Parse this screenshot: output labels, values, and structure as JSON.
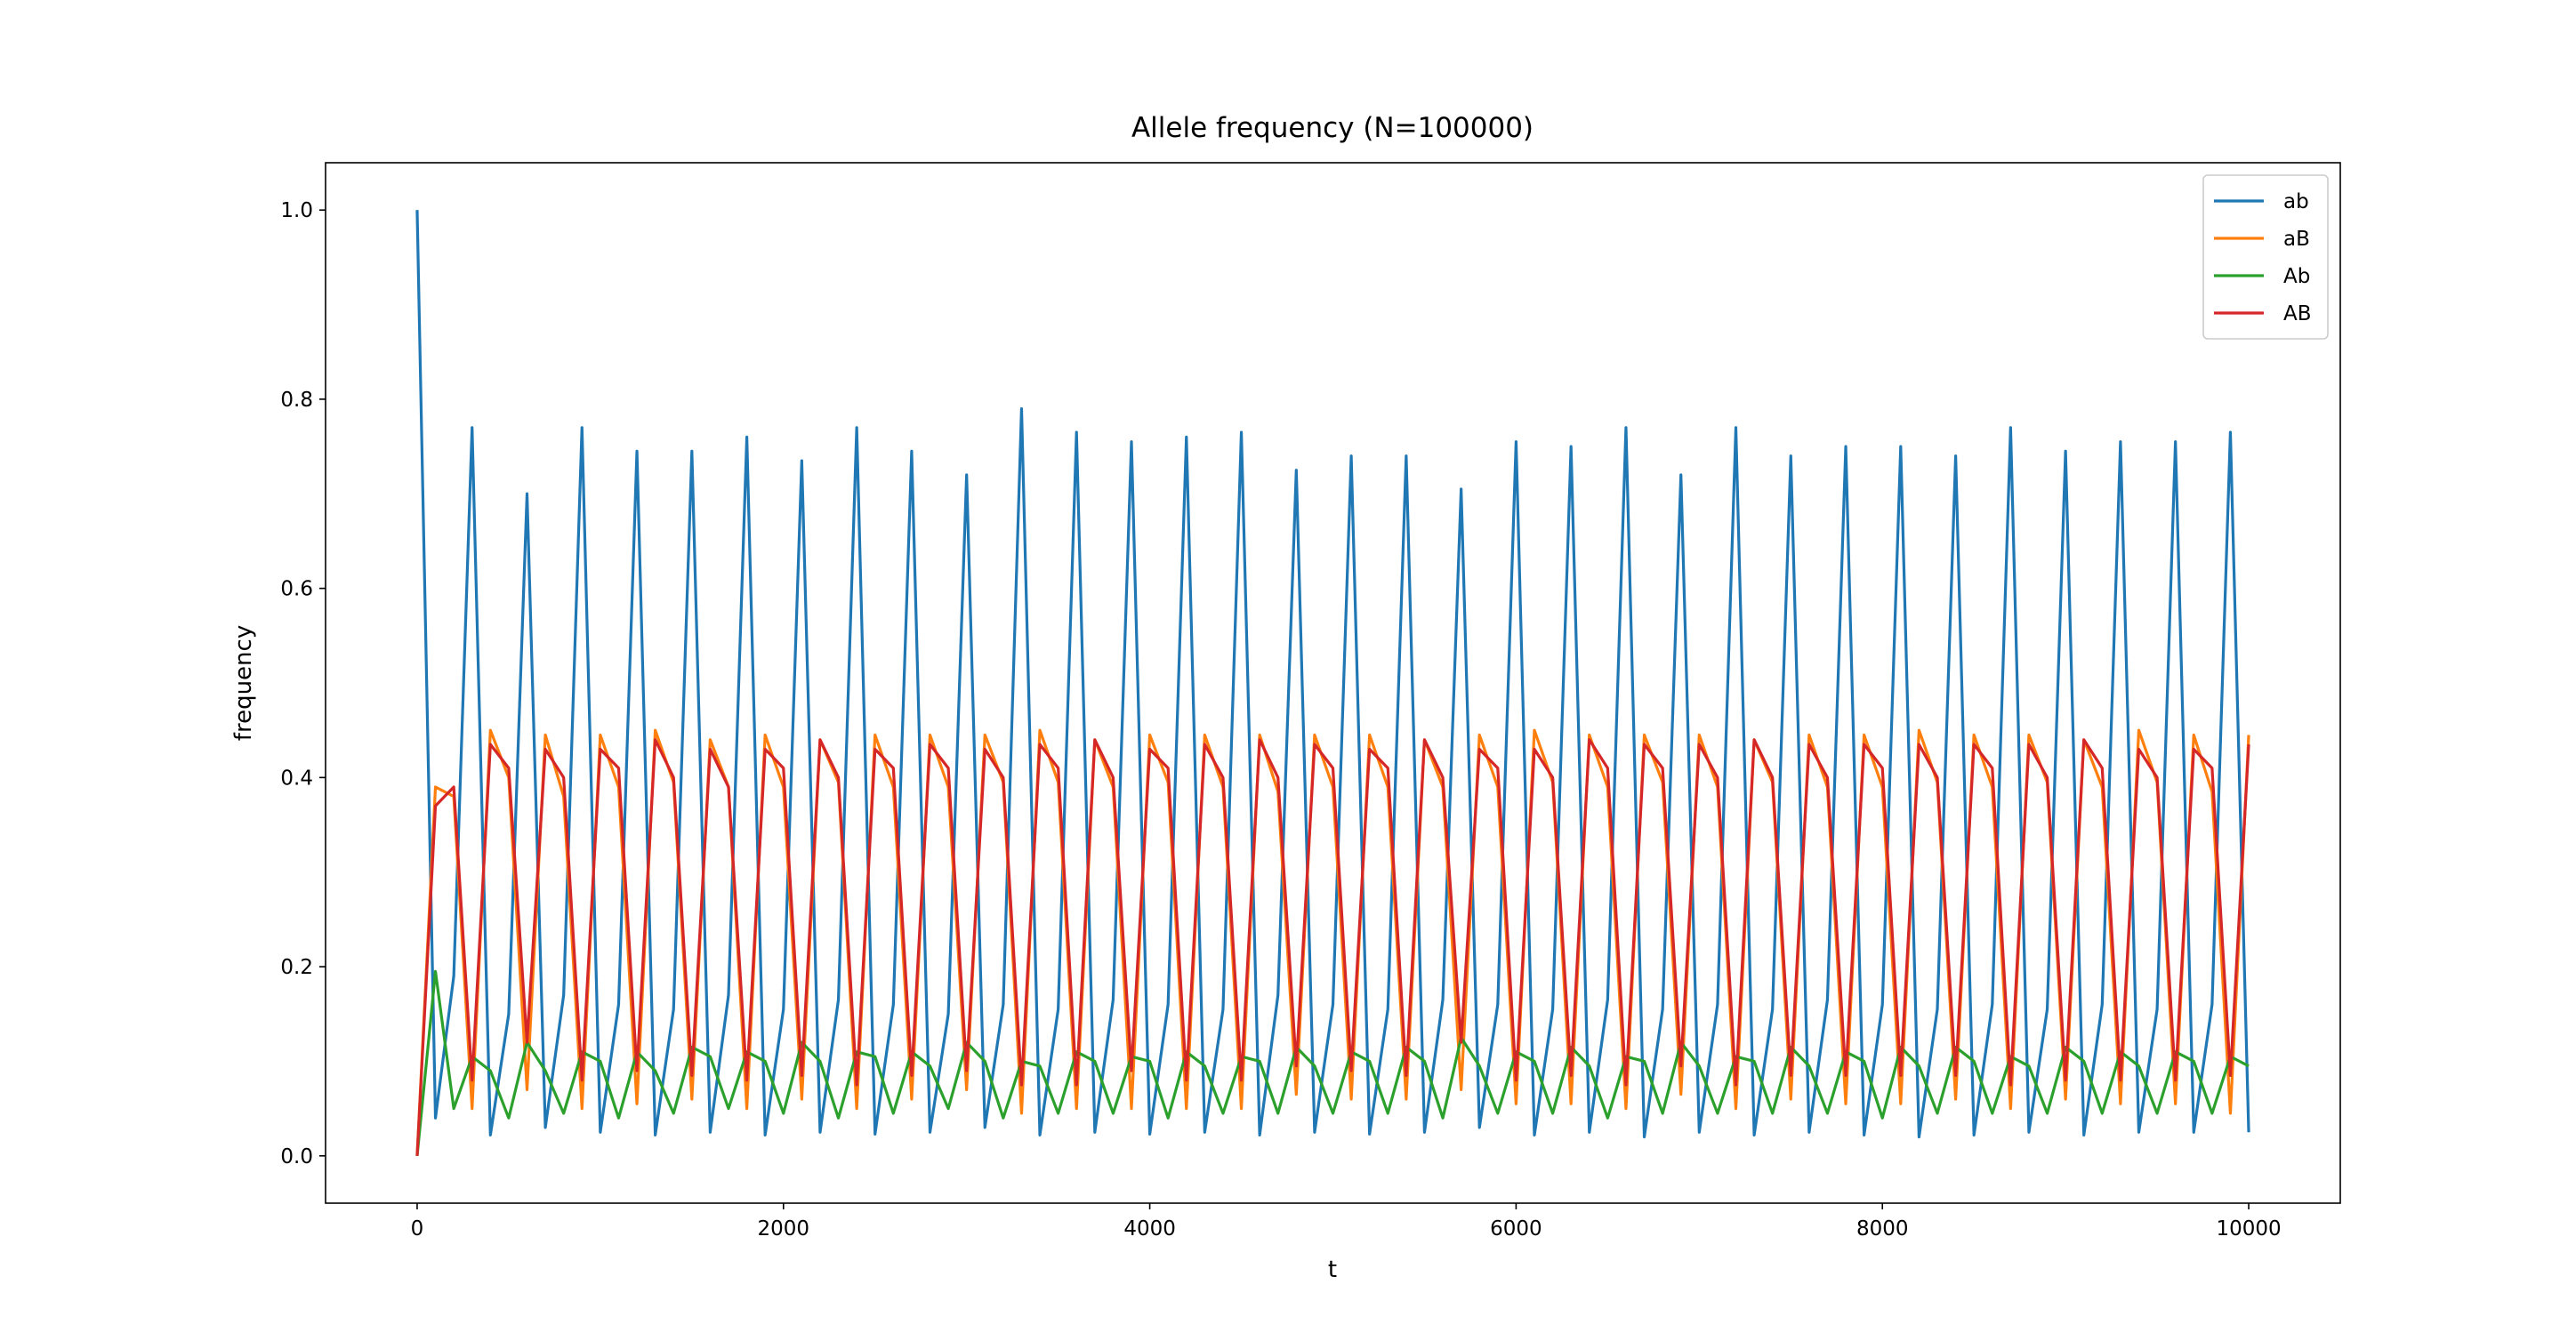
{
  "chart_data": {
    "type": "line",
    "title": "Allele frequency (N=100000)",
    "x_label": "t",
    "y_label": "frequency",
    "x": [
      0,
      100,
      200,
      300,
      400,
      500,
      600,
      700,
      800,
      900,
      1000,
      1100,
      1200,
      1300,
      1400,
      1500,
      1600,
      1700,
      1800,
      1900,
      2000,
      2100,
      2200,
      2300,
      2400,
      2500,
      2600,
      2700,
      2800,
      2900,
      3000,
      3100,
      3200,
      3300,
      3400,
      3500,
      3600,
      3700,
      3800,
      3900,
      4000,
      4100,
      4200,
      4300,
      4400,
      4500,
      4600,
      4700,
      4800,
      4900,
      5000,
      5100,
      5200,
      5300,
      5400,
      5500,
      5600,
      5700,
      5800,
      5900,
      6000,
      6100,
      6200,
      6300,
      6400,
      6500,
      6600,
      6700,
      6800,
      6900,
      7000,
      7100,
      7200,
      7300,
      7400,
      7500,
      7600,
      7700,
      7800,
      7900,
      8000,
      8100,
      8200,
      8300,
      8400,
      8500,
      8600,
      8700,
      8800,
      8900,
      9000,
      9100,
      9200,
      9300,
      9400,
      9500,
      9600,
      9700,
      9800,
      9900,
      10000
    ],
    "series": [
      {
        "name": "ab",
        "color": "#1f77b4",
        "values": [
          1.0,
          0.04,
          0.19,
          0.77,
          0.022,
          0.15,
          0.7,
          0.03,
          0.17,
          0.77,
          0.025,
          0.16,
          0.745,
          0.022,
          0.155,
          0.745,
          0.025,
          0.17,
          0.76,
          0.022,
          0.155,
          0.735,
          0.025,
          0.165,
          0.77,
          0.023,
          0.16,
          0.745,
          0.025,
          0.15,
          0.72,
          0.03,
          0.16,
          0.79,
          0.022,
          0.155,
          0.765,
          0.025,
          0.165,
          0.755,
          0.023,
          0.16,
          0.76,
          0.025,
          0.155,
          0.765,
          0.022,
          0.17,
          0.725,
          0.025,
          0.16,
          0.74,
          0.023,
          0.155,
          0.74,
          0.025,
          0.165,
          0.705,
          0.03,
          0.16,
          0.755,
          0.022,
          0.155,
          0.75,
          0.025,
          0.165,
          0.77,
          0.02,
          0.155,
          0.72,
          0.025,
          0.16,
          0.77,
          0.022,
          0.155,
          0.74,
          0.025,
          0.165,
          0.75,
          0.022,
          0.16,
          0.75,
          0.02,
          0.155,
          0.74,
          0.022,
          0.16,
          0.77,
          0.025,
          0.155,
          0.745,
          0.022,
          0.16,
          0.755,
          0.025,
          0.155,
          0.755,
          0.025,
          0.16,
          0.765,
          0.025
        ]
      },
      {
        "name": "aB",
        "color": "#ff7f0e",
        "values": [
          0,
          0.39,
          0.38,
          0.05,
          0.45,
          0.4,
          0.07,
          0.445,
          0.38,
          0.05,
          0.445,
          0.39,
          0.055,
          0.45,
          0.395,
          0.06,
          0.44,
          0.39,
          0.05,
          0.445,
          0.39,
          0.06,
          0.44,
          0.395,
          0.05,
          0.445,
          0.39,
          0.06,
          0.445,
          0.39,
          0.07,
          0.445,
          0.395,
          0.045,
          0.45,
          0.395,
          0.05,
          0.44,
          0.39,
          0.05,
          0.445,
          0.395,
          0.05,
          0.445,
          0.39,
          0.05,
          0.445,
          0.385,
          0.065,
          0.445,
          0.39,
          0.06,
          0.445,
          0.39,
          0.06,
          0.44,
          0.39,
          0.07,
          0.445,
          0.39,
          0.055,
          0.45,
          0.395,
          0.055,
          0.445,
          0.39,
          0.05,
          0.445,
          0.395,
          0.065,
          0.445,
          0.39,
          0.05,
          0.44,
          0.395,
          0.06,
          0.445,
          0.39,
          0.055,
          0.445,
          0.39,
          0.055,
          0.45,
          0.395,
          0.06,
          0.445,
          0.39,
          0.05,
          0.445,
          0.395,
          0.06,
          0.44,
          0.39,
          0.055,
          0.45,
          0.395,
          0.055,
          0.445,
          0.385,
          0.045,
          0.445
        ]
      },
      {
        "name": "Ab",
        "color": "#2ca02c",
        "values": [
          0,
          0.195,
          0.05,
          0.105,
          0.09,
          0.04,
          0.12,
          0.09,
          0.045,
          0.11,
          0.1,
          0.04,
          0.11,
          0.09,
          0.045,
          0.115,
          0.105,
          0.05,
          0.11,
          0.1,
          0.045,
          0.12,
          0.1,
          0.04,
          0.11,
          0.105,
          0.045,
          0.11,
          0.095,
          0.05,
          0.12,
          0.1,
          0.04,
          0.1,
          0.095,
          0.045,
          0.11,
          0.1,
          0.045,
          0.105,
          0.1,
          0.04,
          0.11,
          0.095,
          0.045,
          0.105,
          0.1,
          0.045,
          0.115,
          0.095,
          0.045,
          0.11,
          0.1,
          0.045,
          0.115,
          0.1,
          0.04,
          0.125,
          0.095,
          0.045,
          0.11,
          0.1,
          0.045,
          0.115,
          0.095,
          0.04,
          0.105,
          0.1,
          0.045,
          0.12,
          0.095,
          0.045,
          0.105,
          0.1,
          0.045,
          0.115,
          0.095,
          0.045,
          0.11,
          0.1,
          0.04,
          0.115,
          0.095,
          0.045,
          0.115,
          0.1,
          0.045,
          0.105,
          0.095,
          0.045,
          0.115,
          0.1,
          0.045,
          0.11,
          0.095,
          0.045,
          0.11,
          0.1,
          0.045,
          0.105,
          0.095
        ]
      },
      {
        "name": "AB",
        "color": "#d62728",
        "values": [
          0,
          0.37,
          0.39,
          0.08,
          0.435,
          0.41,
          0.12,
          0.43,
          0.4,
          0.08,
          0.43,
          0.41,
          0.09,
          0.44,
          0.4,
          0.085,
          0.43,
          0.39,
          0.08,
          0.43,
          0.41,
          0.085,
          0.44,
          0.4,
          0.075,
          0.43,
          0.41,
          0.085,
          0.435,
          0.41,
          0.09,
          0.43,
          0.4,
          0.075,
          0.435,
          0.41,
          0.075,
          0.44,
          0.4,
          0.09,
          0.43,
          0.41,
          0.08,
          0.435,
          0.4,
          0.08,
          0.44,
          0.4,
          0.095,
          0.435,
          0.41,
          0.09,
          0.43,
          0.41,
          0.085,
          0.44,
          0.4,
          0.12,
          0.43,
          0.41,
          0.08,
          0.43,
          0.4,
          0.085,
          0.44,
          0.41,
          0.075,
          0.435,
          0.41,
          0.095,
          0.435,
          0.4,
          0.075,
          0.44,
          0.4,
          0.085,
          0.435,
          0.4,
          0.085,
          0.435,
          0.41,
          0.085,
          0.435,
          0.4,
          0.085,
          0.435,
          0.41,
          0.075,
          0.435,
          0.4,
          0.08,
          0.44,
          0.41,
          0.08,
          0.43,
          0.4,
          0.08,
          0.43,
          0.41,
          0.085,
          0.435
        ]
      }
    ],
    "xlim": [
      -500,
      10500
    ],
    "ylim": [
      -0.05,
      1.05
    ],
    "xticks": [
      0,
      2000,
      4000,
      6000,
      8000,
      10000
    ],
    "yticks": [
      {
        "value": 0,
        "label": "0.0"
      },
      {
        "value": 0.2,
        "label": "0.2"
      },
      {
        "value": 0.4,
        "label": "0.4"
      },
      {
        "value": 0.6,
        "label": "0.6"
      },
      {
        "value": 0.8,
        "label": "0.8"
      },
      {
        "value": 1.0,
        "label": "1.0"
      }
    ],
    "legend": "upper right",
    "grid": false
  }
}
